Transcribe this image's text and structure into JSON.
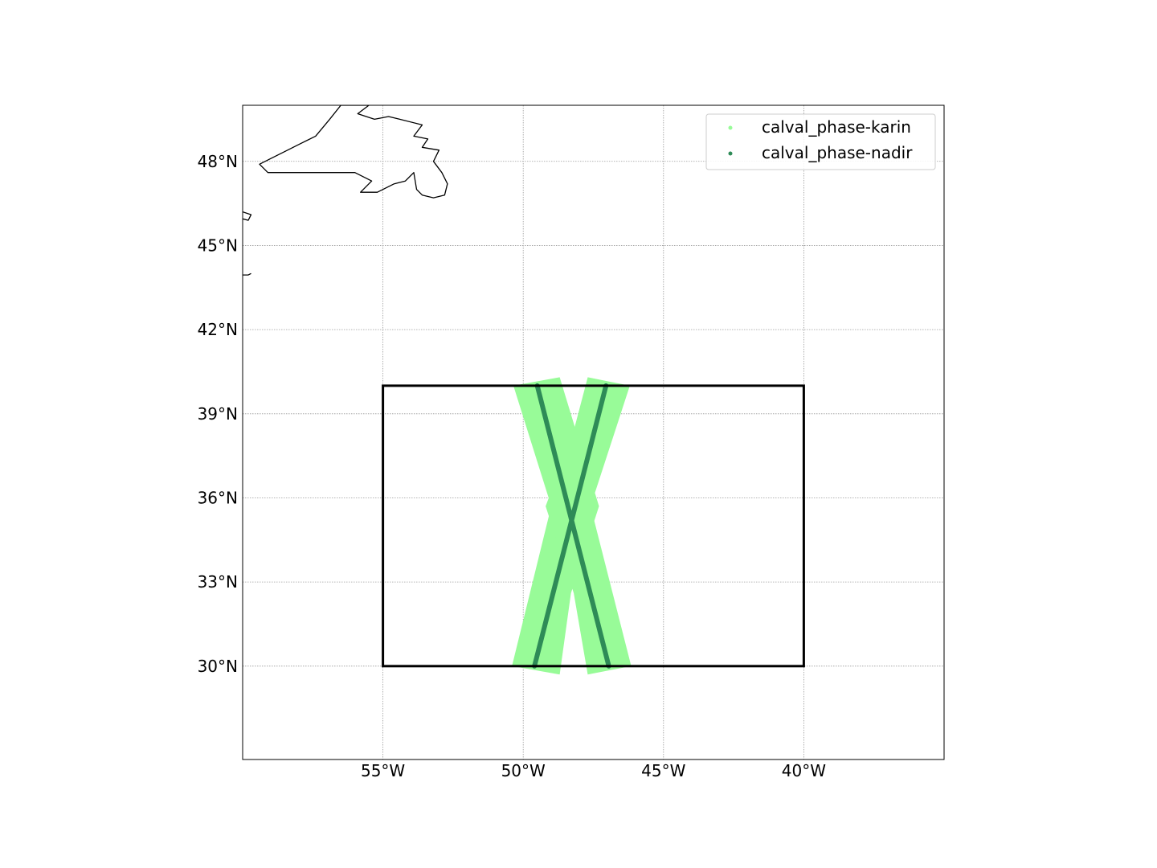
{
  "chart_data": {
    "type": "map",
    "projection": "PlateCarree",
    "xlim": [
      -60,
      -35
    ],
    "ylim": [
      26.67,
      50
    ],
    "grid": true,
    "x_ticks": [
      {
        "value": -55,
        "label": "55°W"
      },
      {
        "value": -50,
        "label": "50°W"
      },
      {
        "value": -45,
        "label": "45°W"
      },
      {
        "value": -40,
        "label": "40°W"
      }
    ],
    "y_ticks": [
      {
        "value": 30,
        "label": "30°N"
      },
      {
        "value": 33,
        "label": "33°N"
      },
      {
        "value": 36,
        "label": "36°N"
      },
      {
        "value": 39,
        "label": "39°N"
      },
      {
        "value": 42,
        "label": "42°N"
      },
      {
        "value": 45,
        "label": "45°N"
      },
      {
        "value": 48,
        "label": "48°N"
      }
    ],
    "region_box": {
      "lon": [
        -55,
        -40
      ],
      "lat": [
        30,
        40
      ],
      "color": "#000000"
    },
    "legend_position": "top-right",
    "series": [
      {
        "name": "calval_phase-karin",
        "color": "#98fb98",
        "swaths": [
          {
            "lon": [
              -50.35,
              -48.7,
              -46.2,
              -47.7
            ],
            "lat": [
              40.0,
              29.7,
              40.0,
              29.7
            ],
            "polygon": [
              [
                -50.35,
                40.0
              ],
              [
                -48.7,
                40.3
              ],
              [
                -47.3,
                35.7
              ],
              [
                -48.3,
                32.6
              ],
              [
                -48.7,
                29.7
              ],
              [
                -50.4,
                30.0
              ],
              [
                -49.0,
                35.7
              ]
            ]
          },
          {
            "polygon": [
              [
                -47.7,
                40.3
              ],
              [
                -46.2,
                40.0
              ],
              [
                -47.6,
                35.7
              ],
              [
                -46.15,
                30.0
              ],
              [
                -47.7,
                29.7
              ],
              [
                -48.2,
                32.6
              ],
              [
                -49.2,
                35.7
              ],
              [
                -48.2,
                38.4
              ]
            ]
          }
        ]
      },
      {
        "name": "calval_phase-nadir",
        "color": "#2e8b57",
        "tracks": [
          {
            "start": [
              -49.5,
              40.0
            ],
            "end": [
              -46.95,
              30.0
            ]
          },
          {
            "start": [
              -47.05,
              40.0
            ],
            "end": [
              -49.6,
              30.0
            ]
          }
        ]
      }
    ],
    "coastlines": [
      {
        "name": "newfoundland",
        "points": [
          [
            -58.4,
            48.4
          ],
          [
            -58.0,
            48.6
          ],
          [
            -57.4,
            48.9
          ],
          [
            -56.9,
            49.5
          ],
          [
            -56.5,
            50.0
          ],
          [
            -55.5,
            50.0
          ],
          [
            -55.9,
            49.7
          ],
          [
            -55.3,
            49.5
          ],
          [
            -54.8,
            49.6
          ],
          [
            -54.4,
            49.5
          ],
          [
            -53.6,
            49.3
          ],
          [
            -53.9,
            48.9
          ],
          [
            -53.4,
            48.8
          ],
          [
            -53.6,
            48.5
          ],
          [
            -53.0,
            48.4
          ],
          [
            -53.2,
            48.0
          ],
          [
            -52.9,
            47.6
          ],
          [
            -52.7,
            47.2
          ],
          [
            -52.8,
            46.8
          ],
          [
            -53.2,
            46.7
          ],
          [
            -53.6,
            46.8
          ],
          [
            -53.8,
            47.0
          ],
          [
            -53.9,
            47.6
          ],
          [
            -54.2,
            47.3
          ],
          [
            -54.6,
            47.2
          ],
          [
            -55.2,
            46.9
          ],
          [
            -55.8,
            46.9
          ],
          [
            -55.4,
            47.3
          ],
          [
            -56.0,
            47.6
          ],
          [
            -56.9,
            47.6
          ],
          [
            -57.7,
            47.6
          ],
          [
            -58.3,
            47.6
          ],
          [
            -59.1,
            47.6
          ],
          [
            -59.4,
            47.9
          ],
          [
            -59.0,
            48.1
          ],
          [
            -58.6,
            48.3
          ],
          [
            -58.4,
            48.4
          ]
        ]
      },
      {
        "name": "nova-scotia-edge",
        "points": [
          [
            -60.0,
            46.2
          ],
          [
            -59.7,
            46.1
          ],
          [
            -59.8,
            45.9
          ],
          [
            -60.0,
            45.95
          ]
        ]
      },
      {
        "name": "nova-scotia-south",
        "points": [
          [
            -60.0,
            43.95
          ],
          [
            -59.8,
            43.95
          ],
          [
            -59.7,
            44.0
          ]
        ]
      }
    ]
  }
}
